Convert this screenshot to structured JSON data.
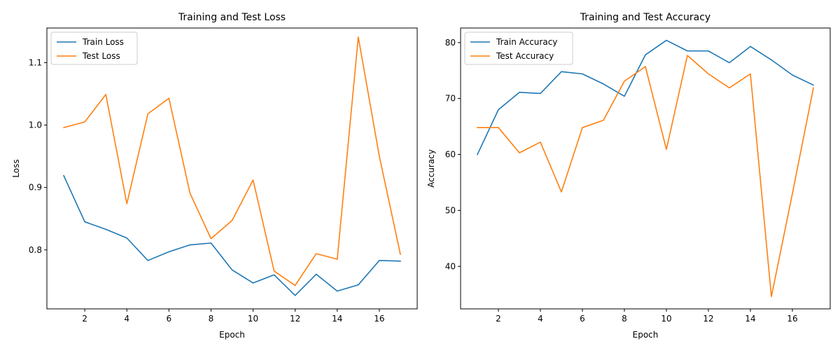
{
  "chart_data": [
    {
      "type": "line",
      "title": "Training and Test Loss",
      "xlabel": "Epoch",
      "ylabel": "Loss",
      "x": [
        1,
        2,
        3,
        4,
        5,
        6,
        7,
        8,
        9,
        10,
        11,
        12,
        13,
        14,
        15,
        16,
        17
      ],
      "xlim": [
        0.2,
        17.8
      ],
      "ylim": [
        0.7055,
        1.1555
      ],
      "xticks": [
        2,
        4,
        6,
        8,
        10,
        12,
        14,
        16
      ],
      "yticks": [
        0.8,
        0.9,
        1.0,
        1.1
      ],
      "ytick_labels": [
        "0.8",
        "0.9",
        "1.0",
        "1.1"
      ],
      "legend_position": "upper-left",
      "grid": false,
      "series": [
        {
          "name": "Train Loss",
          "color": "#1f77b4",
          "values": [
            0.919,
            0.845,
            0.833,
            0.819,
            0.783,
            0.797,
            0.808,
            0.811,
            0.768,
            0.747,
            0.76,
            0.727,
            0.761,
            0.734,
            0.744,
            0.783,
            0.782
          ]
        },
        {
          "name": "Test Loss",
          "color": "#ff7f0e",
          "values": [
            0.996,
            1.005,
            1.049,
            0.874,
            1.018,
            1.043,
            0.891,
            0.818,
            0.847,
            0.912,
            0.766,
            0.743,
            0.794,
            0.785,
            1.141,
            0.95,
            0.793
          ]
        }
      ]
    },
    {
      "type": "line",
      "title": "Training and Test Accuracy",
      "xlabel": "Epoch",
      "ylabel": "Accuracy",
      "x": [
        1,
        2,
        3,
        4,
        5,
        6,
        7,
        8,
        9,
        10,
        11,
        12,
        13,
        14,
        15,
        16,
        17
      ],
      "xlim": [
        0.2,
        17.8
      ],
      "ylim": [
        32.4,
        82.6
      ],
      "xticks": [
        2,
        4,
        6,
        8,
        10,
        12,
        14,
        16
      ],
      "yticks": [
        40,
        50,
        60,
        70,
        80
      ],
      "ytick_labels": [
        "40",
        "50",
        "60",
        "70",
        "80"
      ],
      "legend_position": "upper-left",
      "grid": false,
      "series": [
        {
          "name": "Train Accuracy",
          "color": "#1f77b4",
          "values": [
            60.0,
            68.0,
            71.1,
            70.9,
            74.8,
            74.4,
            72.6,
            70.4,
            77.8,
            80.4,
            78.5,
            78.5,
            76.4,
            79.3,
            76.9,
            74.2,
            72.4
          ]
        },
        {
          "name": "Test Accuracy",
          "color": "#ff7f0e",
          "values": [
            64.8,
            64.8,
            60.3,
            62.2,
            53.3,
            64.8,
            66.1,
            73.1,
            75.7,
            60.9,
            77.7,
            74.4,
            71.9,
            74.4,
            34.6,
            53.0,
            71.9
          ]
        }
      ]
    }
  ]
}
